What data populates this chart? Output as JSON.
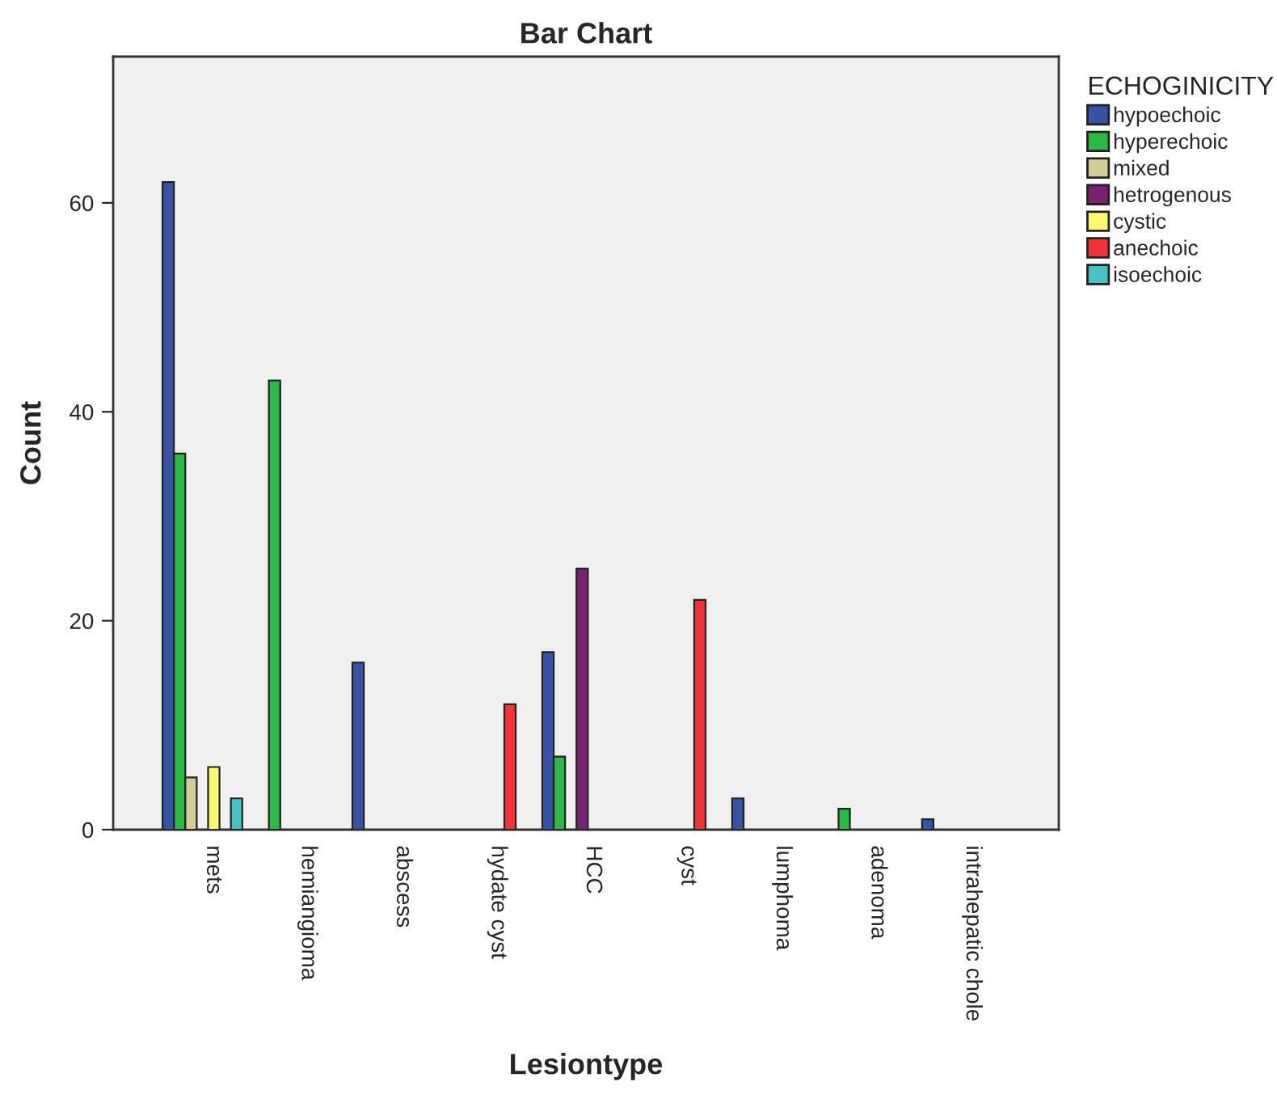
{
  "chart_data": {
    "type": "bar",
    "title": "Bar Chart",
    "xlabel": "Lesiontype",
    "ylabel": "Count",
    "legend_title": "ECHOGINICITY",
    "legend": "top right",
    "grid": false,
    "categories": [
      "mets",
      "hemiangioma",
      "abscess",
      "hydate cyst",
      "HCC",
      "cyst",
      "lumphoma",
      "adenoma",
      "intrahepatic chole"
    ],
    "ylim": [
      0,
      74
    ],
    "yticks": [
      0,
      20,
      40,
      60
    ],
    "series": [
      {
        "name": "hypoechoic",
        "color": "#3953a4",
        "values": [
          62,
          null,
          16,
          null,
          17,
          null,
          3,
          null,
          1
        ]
      },
      {
        "name": "hyperechoic",
        "color": "#2eb848",
        "values": [
          36,
          43,
          null,
          null,
          7,
          null,
          null,
          2,
          null
        ]
      },
      {
        "name": "mixed",
        "color": "#d3ce97",
        "values": [
          5,
          null,
          null,
          null,
          null,
          null,
          null,
          null,
          null
        ]
      },
      {
        "name": "hetrogenous",
        "color": "#7a2270",
        "values": [
          null,
          null,
          null,
          null,
          25,
          null,
          null,
          null,
          null
        ]
      },
      {
        "name": "cystic",
        "color": "#fbf873",
        "values": [
          6,
          null,
          null,
          null,
          null,
          null,
          null,
          null,
          null
        ]
      },
      {
        "name": "anechoic",
        "color": "#ef3338",
        "values": [
          null,
          null,
          null,
          12,
          null,
          22,
          null,
          null,
          null
        ]
      },
      {
        "name": "isoechoic",
        "color": "#48c2c5",
        "values": [
          3,
          null,
          null,
          null,
          null,
          null,
          null,
          null,
          null
        ]
      }
    ]
  }
}
